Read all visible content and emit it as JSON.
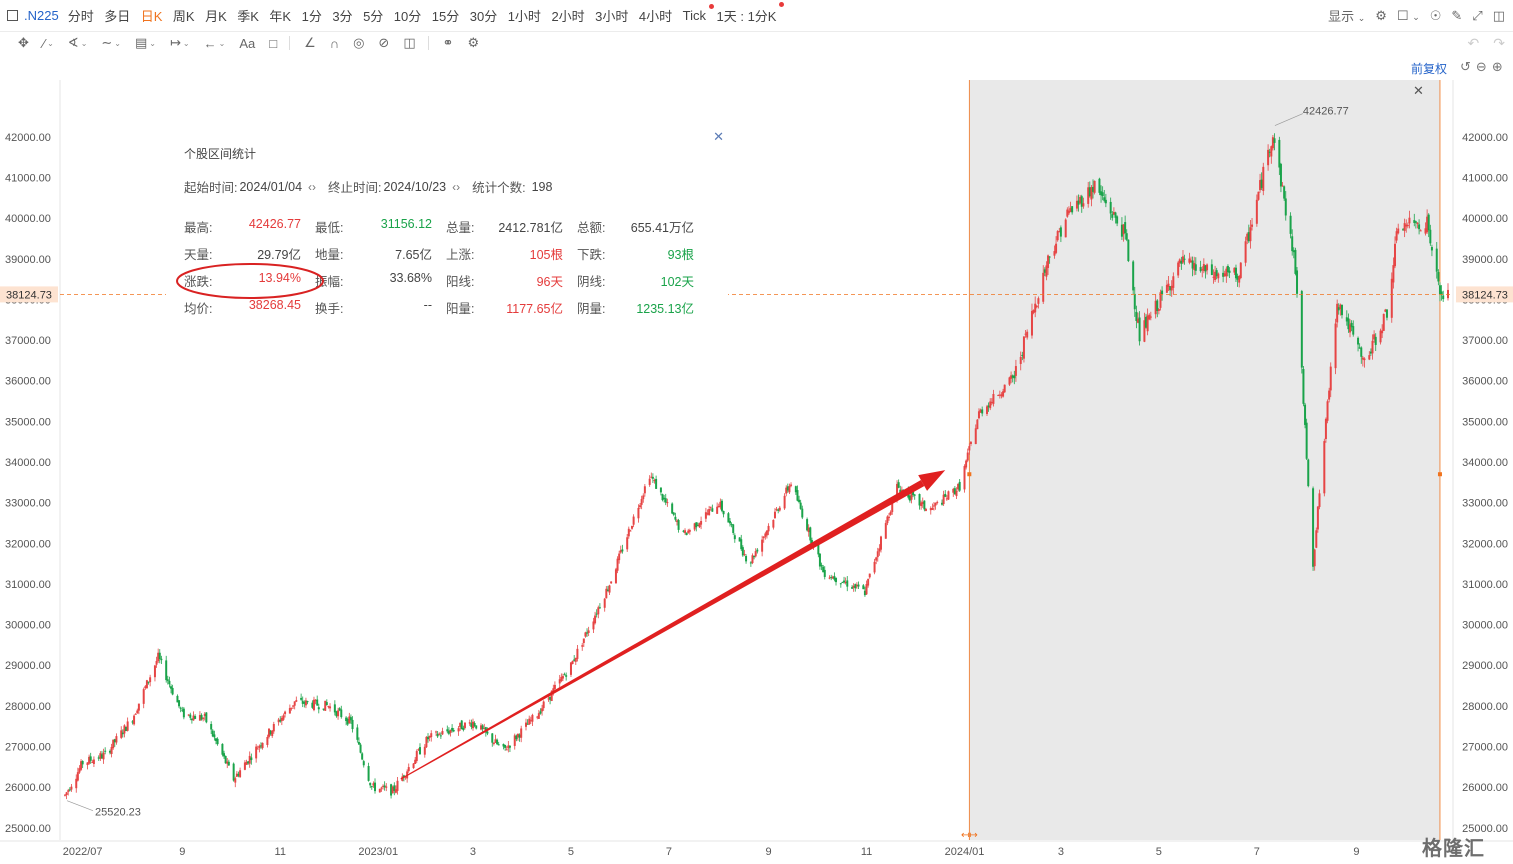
{
  "header": {
    "symbol": ".N225",
    "periods": [
      {
        "label": "分时",
        "active": false,
        "dot": false
      },
      {
        "label": "多日",
        "active": false,
        "dot": false
      },
      {
        "label": "日K",
        "active": true,
        "dot": false
      },
      {
        "label": "周K",
        "active": false,
        "dot": false
      },
      {
        "label": "月K",
        "active": false,
        "dot": false
      },
      {
        "label": "季K",
        "active": false,
        "dot": false
      },
      {
        "label": "年K",
        "active": false,
        "dot": false
      },
      {
        "label": "1分",
        "active": false,
        "dot": false
      },
      {
        "label": "3分",
        "active": false,
        "dot": false
      },
      {
        "label": "5分",
        "active": false,
        "dot": false
      },
      {
        "label": "10分",
        "active": false,
        "dot": false
      },
      {
        "label": "15分",
        "active": false,
        "dot": false
      },
      {
        "label": "30分",
        "active": false,
        "dot": false
      },
      {
        "label": "1小时",
        "active": false,
        "dot": false
      },
      {
        "label": "2小时",
        "active": false,
        "dot": false
      },
      {
        "label": "3小时",
        "active": false,
        "dot": false
      },
      {
        "label": "4小时",
        "active": false,
        "dot": false
      },
      {
        "label": "Tick",
        "active": false,
        "dot": true
      },
      {
        "label": "1天 : 1分K",
        "active": false,
        "dot": true
      }
    ],
    "display_label": "显示"
  },
  "adjust_label": "前复权",
  "stats_panel": {
    "title": "个股区间统计",
    "start_label": "起始时间:",
    "start_value": "2024/01/04",
    "end_label": "终止时间:",
    "end_value": "2024/10/23",
    "count_label": "统计个数:",
    "count_value": "198",
    "rows": [
      [
        {
          "label": "最高:",
          "value": "42426.77",
          "color": "red"
        },
        {
          "label": "最低:",
          "value": "31156.12",
          "color": "green"
        },
        {
          "label": "总量:",
          "value": "2412.781亿",
          "color": ""
        },
        {
          "label": "总额:",
          "value": "655.41万亿",
          "color": ""
        }
      ],
      [
        {
          "label": "天量:",
          "value": "29.79亿",
          "color": ""
        },
        {
          "label": "地量:",
          "value": "7.65亿",
          "color": ""
        },
        {
          "label": "上涨:",
          "value": "105根",
          "color": "red"
        },
        {
          "label": "下跌:",
          "value": "93根",
          "color": "green"
        }
      ],
      [
        {
          "label": "涨跌:",
          "value": "13.94%",
          "color": "red"
        },
        {
          "label": "振幅:",
          "value": "33.68%",
          "color": ""
        },
        {
          "label": "阳线:",
          "value": "96天",
          "color": "red"
        },
        {
          "label": "阴线:",
          "value": "102天",
          "color": "green"
        }
      ],
      [
        {
          "label": "均价:",
          "value": "38268.45",
          "color": "red"
        },
        {
          "label": "换手:",
          "value": "--",
          "color": ""
        },
        {
          "label": "阳量:",
          "value": "1177.65亿",
          "color": "red"
        },
        {
          "label": "阴量:",
          "value": "1235.13亿",
          "color": "green"
        }
      ]
    ]
  },
  "watermark": "格隆汇",
  "colors": {
    "up": "#e64545",
    "down": "#1aa34a",
    "accent": "#f0731e",
    "link": "#2463c9",
    "arrow": "#e02020"
  },
  "chart_data": {
    "type": "candlestick",
    "y_ticks": [
      25000,
      26000,
      27000,
      28000,
      29000,
      30000,
      31000,
      32000,
      33000,
      34000,
      35000,
      36000,
      37000,
      38000,
      39000,
      40000,
      41000,
      42000
    ],
    "y_tick_labels": [
      "25000.00",
      "26000.00",
      "27000.00",
      "28000.00",
      "29000.00",
      "30000.00",
      "31000.00",
      "32000.00",
      "33000.00",
      "34000.00",
      "35000.00",
      "36000.00",
      "37000.00",
      "38000.00",
      "39000.00",
      "40000.00",
      "41000.00",
      "42000.00"
    ],
    "ylim": [
      24700,
      43400
    ],
    "current_price": 38124.73,
    "current_price_label": "38124.73",
    "x_labels": [
      "2022/07",
      "9",
      "11",
      "2023/01",
      "3",
      "5",
      "7",
      "9",
      "11",
      "2024/01",
      "3",
      "5",
      "7",
      "9"
    ],
    "x_label_dates": [
      "2022-07-01",
      "2022-09-01",
      "2022-11-01",
      "2023-01-01",
      "2023-03-01",
      "2023-05-01",
      "2023-07-01",
      "2023-09-01",
      "2023-11-01",
      "2024-01-01",
      "2024-03-01",
      "2024-05-01",
      "2024-07-01",
      "2024-09-01"
    ],
    "x_start": "2022-06-20",
    "x_end": "2024-10-28",
    "max_label": "42426.77",
    "max_date": "2024-07-11",
    "min_label": "25520.23",
    "min_date": "2022-06-20",
    "selection_range": [
      "2024-01-04",
      "2024-10-23"
    ],
    "path": [
      {
        "date": "2022-06-20",
        "close": 25800
      },
      {
        "date": "2022-07-01",
        "close": 26600
      },
      {
        "date": "2022-07-15",
        "close": 26800
      },
      {
        "date": "2022-08-01",
        "close": 27700
      },
      {
        "date": "2022-08-17",
        "close": 29200
      },
      {
        "date": "2022-09-01",
        "close": 27800
      },
      {
        "date": "2022-09-15",
        "close": 27700
      },
      {
        "date": "2022-10-03",
        "close": 26200
      },
      {
        "date": "2022-10-20",
        "close": 27100
      },
      {
        "date": "2022-11-10",
        "close": 28100
      },
      {
        "date": "2022-12-01",
        "close": 28000
      },
      {
        "date": "2022-12-15",
        "close": 27600
      },
      {
        "date": "2022-12-28",
        "close": 26000
      },
      {
        "date": "2023-01-10",
        "close": 25900
      },
      {
        "date": "2023-02-01",
        "close": 27200
      },
      {
        "date": "2023-03-01",
        "close": 27600
      },
      {
        "date": "2023-03-20",
        "close": 26900
      },
      {
        "date": "2023-04-10",
        "close": 27800
      },
      {
        "date": "2023-05-01",
        "close": 29000
      },
      {
        "date": "2023-05-25",
        "close": 31000
      },
      {
        "date": "2023-06-19",
        "close": 33700
      },
      {
        "date": "2023-07-10",
        "close": 32200
      },
      {
        "date": "2023-08-01",
        "close": 33000
      },
      {
        "date": "2023-08-20",
        "close": 31500
      },
      {
        "date": "2023-09-15",
        "close": 33500
      },
      {
        "date": "2023-10-05",
        "close": 31300
      },
      {
        "date": "2023-10-31",
        "close": 30800
      },
      {
        "date": "2023-11-20",
        "close": 33400
      },
      {
        "date": "2023-12-10",
        "close": 32800
      },
      {
        "date": "2023-12-29",
        "close": 33400
      },
      {
        "date": "2024-01-10",
        "close": 35200
      },
      {
        "date": "2024-02-01",
        "close": 36100
      },
      {
        "date": "2024-02-22",
        "close": 39000
      },
      {
        "date": "2024-03-05",
        "close": 40100
      },
      {
        "date": "2024-03-22",
        "close": 40800
      },
      {
        "date": "2024-04-10",
        "close": 39600
      },
      {
        "date": "2024-04-19",
        "close": 37100
      },
      {
        "date": "2024-05-15",
        "close": 38900
      },
      {
        "date": "2024-06-05",
        "close": 38600
      },
      {
        "date": "2024-06-20",
        "close": 38600
      },
      {
        "date": "2024-07-11",
        "close": 42100
      },
      {
        "date": "2024-07-25",
        "close": 38800
      },
      {
        "date": "2024-08-05",
        "close": 31500
      },
      {
        "date": "2024-08-20",
        "close": 38000
      },
      {
        "date": "2024-09-06",
        "close": 36400
      },
      {
        "date": "2024-09-20",
        "close": 37700
      },
      {
        "date": "2024-09-27",
        "close": 39800
      },
      {
        "date": "2024-10-15",
        "close": 39900
      },
      {
        "date": "2024-10-23",
        "close": 38100
      }
    ],
    "annotations": [
      {
        "type": "arrow",
        "from_date": "2023-01-15",
        "from_value": 26200,
        "to_date": "2023-12-20",
        "to_value": 33800
      },
      {
        "type": "ellipse",
        "target": "stats_panel.rows.2.0"
      }
    ]
  }
}
